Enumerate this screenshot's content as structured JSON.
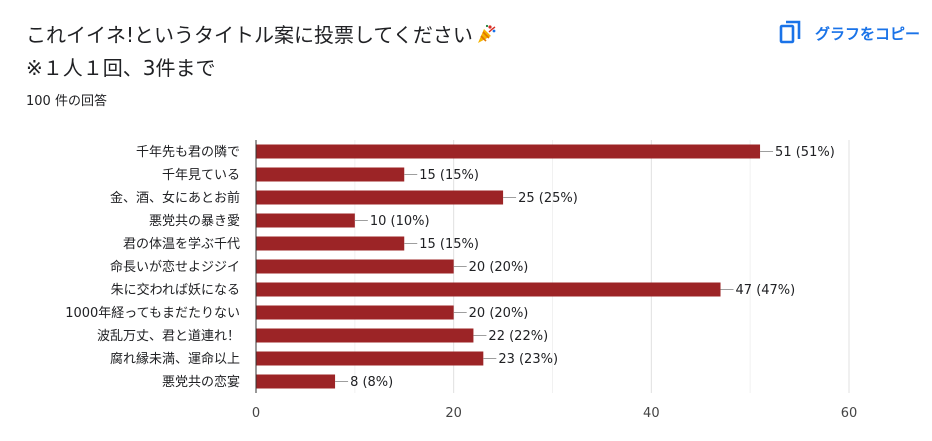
{
  "header": {
    "title_line1": "これイイネ!というタイトル案に投票してください",
    "title_line2": "※１人１回、3件まで",
    "response_count": "100 件の回答",
    "copy_label": "グラフをコピー"
  },
  "icons": {
    "title_emoji": "party-popper-icon",
    "copy": "copy-icon"
  },
  "colors": {
    "bar": "#9c2426",
    "accent": "#1a73e8",
    "grid": "#e6e6e6",
    "text": "#202124"
  },
  "chart_data": {
    "type": "bar",
    "orientation": "horizontal",
    "categories": [
      "千年先も君の隣で",
      "千年見ている",
      "金、酒、女にあとお前",
      "悪党共の暴き愛",
      "君の体温を学ぶ千代",
      "命長いが恋せよジジイ",
      "朱に交われば妖になる",
      "1000年経ってもまだたりない",
      "波乱万丈、君と道連れ！",
      "腐れ縁未満、運命以上",
      "悪党共の恋宴"
    ],
    "values": [
      51,
      15,
      25,
      10,
      15,
      20,
      47,
      20,
      22,
      23,
      8
    ],
    "data_labels": [
      "51 (51%)",
      "15 (15%)",
      "25 (25%)",
      "10 (10%)",
      "15 (15%)",
      "20 (20%)",
      "47 (47%)",
      "20 (20%)",
      "22 (22%)",
      "23 (23%)",
      "8 (8%)"
    ],
    "xlim": [
      0,
      60
    ],
    "xticks": [
      0,
      20,
      40,
      60
    ],
    "grid": true,
    "legend": "none"
  }
}
